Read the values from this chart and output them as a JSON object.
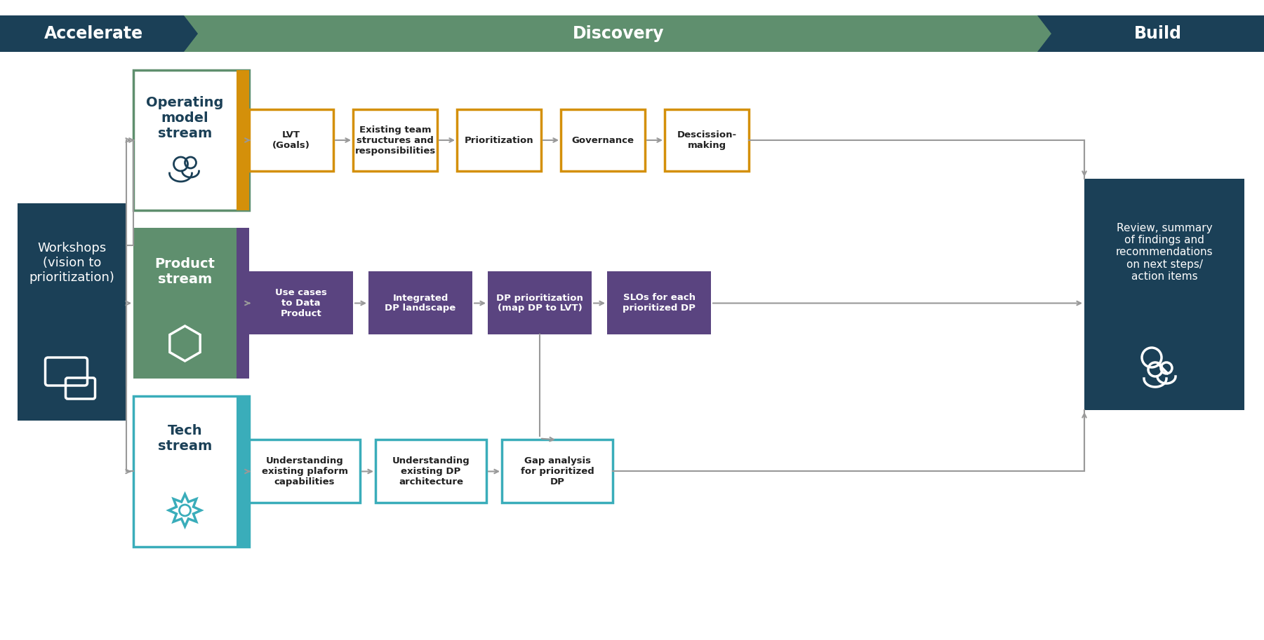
{
  "bg_color": "#ffffff",
  "header_accel_color": "#1b4057",
  "header_disc_color": "#5f8f6e",
  "header_build_color": "#1b4057",
  "workshops_color": "#1b4057",
  "workshops_text": "Workshops\n(vision to\nprioritization)",
  "review_color": "#1b4057",
  "review_text": "Review, summary\nof findings and\nrecommendations\non next steps/\naction items",
  "op_box_color": "#ffffff",
  "op_border_color": "#5f8f6e",
  "op_accent_color": "#d4900a",
  "op_title": "Operating\nmodel\nstream",
  "op_title_color": "#1b4057",
  "op_step_fill": "#ffffff",
  "op_step_border": "#d4900a",
  "op_step_text_color": "#222222",
  "op_steps": [
    "LVT\n(Goals)",
    "Existing team\nstructures and\nresponsibilities",
    "Prioritization",
    "Governance",
    "Descission-\nmaking"
  ],
  "prod_box_color": "#5f8f6e",
  "prod_accent_color": "#5a4480",
  "prod_title": "Product\nstream",
  "prod_title_color": "#ffffff",
  "prod_step_fill": "#5a4480",
  "prod_step_text_color": "#ffffff",
  "prod_steps": [
    "Use cases\nto Data\nProduct",
    "Integrated\nDP landscape",
    "DP prioritization\n(map DP to LVT)",
    "SLOs for each\nprioritized DP"
  ],
  "tech_box_color": "#ffffff",
  "tech_border_color": "#3aadba",
  "tech_accent_color": "#3aadba",
  "tech_title": "Tech\nstream",
  "tech_title_color": "#1b4057",
  "tech_step_fill": "#ffffff",
  "tech_step_border": "#3aadba",
  "tech_step_text_color": "#222222",
  "tech_steps": [
    "Understanding\nexisting plaform\ncapabilities",
    "Understanding\nexisting DP\narchitecture",
    "Gap analysis\nfor prioritized\nDP"
  ],
  "arrow_color": "#999999"
}
